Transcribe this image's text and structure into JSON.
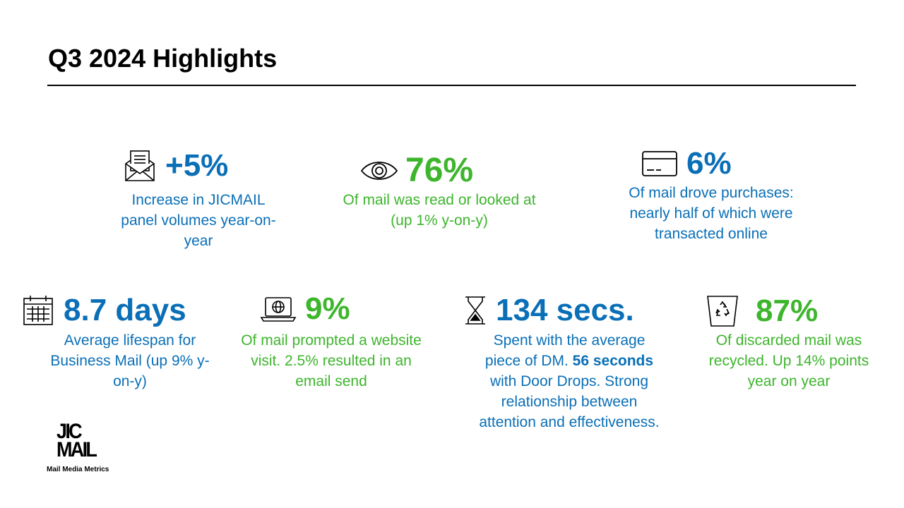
{
  "slide": {
    "title": "Q3 2024 Highlights"
  },
  "colors": {
    "blue": "#0a6fb7",
    "green": "#3db52c"
  },
  "stats": [
    {
      "icon": "envelope-icon",
      "value": "+5%",
      "color": "blue",
      "description": "Increase in JICMAIL panel volumes year-on-year"
    },
    {
      "icon": "eye-icon",
      "value": "76%",
      "color": "green",
      "description": "Of mail was read or looked at (up 1% y-on-y)"
    },
    {
      "icon": "credit-card-icon",
      "value": "6%",
      "color": "blue",
      "description": "Of mail drove purchases: nearly half of which were transacted online"
    },
    {
      "icon": "calendar-icon",
      "value": "8.7 days",
      "color": "blue",
      "description": "Average lifespan for Business Mail (up 9% y-on-y)"
    },
    {
      "icon": "laptop-globe-icon",
      "value": "9%",
      "color": "green",
      "description": "Of mail prompted a website visit. 2.5% resulted in an email send"
    },
    {
      "icon": "hourglass-icon",
      "value": "134 secs.",
      "color": "blue",
      "description_before": "Spent with the average piece of DM.",
      "description_bold": "56 seconds",
      "description_after": "with Door Drops. Strong relationship between attention and effectiveness."
    },
    {
      "icon": "recycle-bin-icon",
      "value": "87%",
      "color": "green",
      "description": "Of discarded mail was recycled. Up 14% points year on year"
    }
  ],
  "logo": {
    "line1": "JIC",
    "line2": "MAIL",
    "tagline": "Mail Media Metrics"
  }
}
